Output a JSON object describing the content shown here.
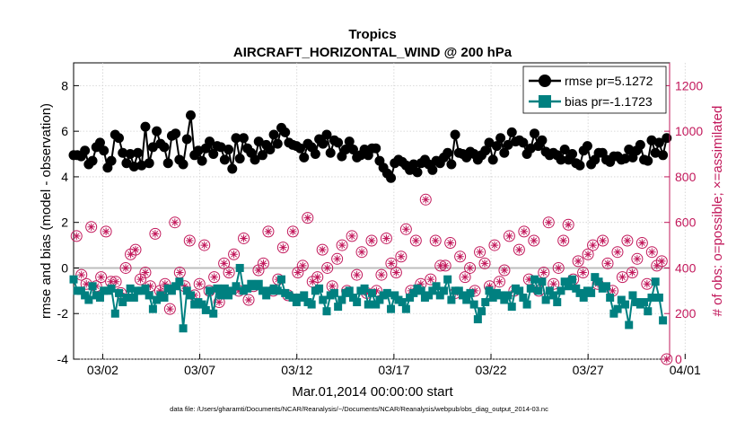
{
  "chart_data": {
    "type": "line",
    "title": "Tropics",
    "subtitle": "AIRCRAFT_HORIZONTAL_WIND @ 200 hPa",
    "xlabel": "Mar.01,2014 00:00:00 start",
    "ylabel": "rmse and bias (model - observation)",
    "y2label": "# of obs: o=possible; ×=assimilated",
    "footer": "data file: /Users/gharamti/Documents/NCAR/Reanalysis/~/Documents/NCAR/Reanalysis/webpub/obs_diag_output_2014-03.nc",
    "xlim": [
      0.5,
      31.2
    ],
    "ylim": [
      -4,
      9
    ],
    "y2lim": [
      0,
      1300
    ],
    "x_ticks": [
      2,
      7,
      12,
      17,
      22,
      27,
      32
    ],
    "x_tick_labels": [
      "03/02",
      "03/07",
      "03/12",
      "03/17",
      "03/22",
      "03/27",
      "04/01"
    ],
    "y_ticks": [
      -4,
      -2,
      0,
      2,
      4,
      6,
      8
    ],
    "y_tick_labels": [
      "-4",
      "-2",
      "0",
      "2",
      "4",
      "6",
      "8"
    ],
    "y2_ticks": [
      0,
      200,
      400,
      600,
      800,
      1000,
      1200
    ],
    "y2_tick_labels": [
      "0",
      "200",
      "400",
      "600",
      "800",
      "1000",
      "1200"
    ],
    "zero_line": 0,
    "legend": [
      {
        "name": "rmse pr=5.1272",
        "color": "#000000"
      },
      {
        "name": "bias pr=-1.1723",
        "color": "#008080"
      }
    ],
    "series": [
      {
        "name": "rmse",
        "color": "#000000",
        "marker": "circle",
        "values": [
          4.95,
          4.95,
          4.9,
          5.15,
          4.55,
          4.7,
          5.3,
          5.5,
          5.15,
          4.4,
          4.7,
          5.85,
          5.7,
          5.05,
          4.6,
          5.0,
          4.45,
          5.05,
          4.5,
          6.2,
          4.6,
          5.3,
          6.0,
          5.45,
          5.3,
          4.6,
          5.8,
          5.9,
          4.75,
          4.55,
          5.65,
          6.7,
          4.95,
          5.15,
          4.7,
          5.25,
          5.55,
          5.0,
          5.35,
          5.3,
          4.75,
          5.2,
          4.35,
          5.7,
          4.8,
          5.7,
          5.25,
          5.05,
          4.75,
          5.55,
          4.95,
          5.4,
          5.2,
          5.85,
          5.45,
          6.15,
          5.95,
          5.5,
          5.4,
          5.35,
          5.25,
          4.85,
          5.45,
          5.3,
          5.0,
          5.65,
          5.45,
          5.85,
          5.05,
          5.6,
          5.5,
          4.9,
          5.2,
          5.55,
          5.2,
          4.85,
          4.95,
          5.2,
          4.95,
          5.25,
          5.25,
          4.7,
          4.4,
          4.15,
          3.95,
          4.6,
          4.75,
          4.65,
          4.5,
          4.3,
          4.55,
          4.2,
          4.6,
          4.75,
          4.55,
          4.3,
          4.7,
          4.6,
          4.85,
          5.05,
          4.55,
          5.85,
          5.05,
          5.0,
          4.85,
          5.1,
          5.0,
          4.75,
          4.95,
          5.15,
          5.5,
          4.75,
          5.35,
          5.7,
          5.05,
          5.4,
          5.95,
          5.55,
          5.6,
          5.5,
          5.0,
          5.25,
          5.9,
          5.35,
          5.6,
          5.1,
          4.95,
          5.05,
          4.95,
          4.75,
          5.2,
          4.75,
          5.0,
          4.6,
          4.5,
          5.15,
          5.35,
          4.55,
          4.75,
          5.05,
          5.05,
          4.75,
          4.65,
          4.9,
          4.9,
          4.75,
          4.8,
          5.2,
          4.85,
          5.15,
          5.4,
          4.75,
          4.7,
          5.6,
          5.05,
          5.5,
          4.95,
          5.7
        ],
        "x_start": 0.5,
        "x_step": 0.1946
      },
      {
        "name": "bias",
        "color": "#008080",
        "marker": "square",
        "values": [
          -0.5,
          -1.0,
          -1.0,
          -1.2,
          -1.4,
          -0.8,
          -1.2,
          -1.3,
          -1.0,
          -1.0,
          -0.9,
          -2.0,
          -1.1,
          -1.5,
          -1.3,
          -0.9,
          -1.3,
          -1.0,
          -1.0,
          -0.9,
          -1.2,
          -1.8,
          -1.4,
          -1.2,
          -1.3,
          -0.9,
          -1.0,
          -0.8,
          -0.6,
          -2.65,
          -1.0,
          -1.2,
          -1.6,
          -1.5,
          -1.6,
          -1.85,
          -1.0,
          -2.0,
          -0.9,
          -1.2,
          -0.9,
          -1.2,
          -1.0,
          -0.8,
          0.0,
          -1.0,
          -0.9,
          -0.7,
          -0.8,
          -0.7,
          -1.0,
          -1.2,
          -1.0,
          -0.9,
          -1.0,
          -0.5,
          -1.1,
          -1.2,
          -1.3,
          -1.5,
          -1.3,
          -1.2,
          -1.5,
          -1.6,
          -1.0,
          -0.9,
          -1.4,
          -1.9,
          -1.2,
          -1.1,
          -1.7,
          -1.4,
          -1.1,
          -1.0,
          -1.3,
          -1.5,
          -1.0,
          -0.9,
          -1.6,
          -1.1,
          -1.6,
          -1.4,
          -1.2,
          -1.1,
          -1.8,
          -1.2,
          -1.4,
          -1.5,
          -1.8,
          -1.3,
          -1.1,
          -0.9,
          -1.0,
          -1.3,
          -1.2,
          -1.0,
          -0.8,
          -1.2,
          -1.0,
          -0.5,
          -1.4,
          -1.0,
          -1.0,
          -1.2,
          -1.4,
          -1.1,
          -1.6,
          -2.25,
          -1.9,
          -1.5,
          -1.0,
          -1.3,
          -1.1,
          -1.2,
          -1.4,
          -1.2,
          -1.7,
          -0.9,
          -1.0,
          -1.3,
          -1.6,
          -0.9,
          -0.5,
          -1.0,
          -0.6,
          -1.4,
          -1.0,
          -1.2,
          -1.5,
          -1.0,
          -0.6,
          -0.8,
          -0.5,
          -0.9,
          -1.1,
          -1.3,
          -1.0,
          -1.1,
          -0.4,
          -0.6,
          -0.9,
          -0.8,
          -1.3,
          -2.0,
          -1.8,
          -1.4,
          -1.6,
          -2.5,
          -1.2,
          -1.5,
          -1.6,
          -1.5,
          -1.9,
          -1.3,
          -0.6,
          -1.3,
          -2.3
        ],
        "x_start": 0.5,
        "x_step": 0.1946
      }
    ],
    "obs_possible": {
      "name": "# of obs possible",
      "color": "#c2185b",
      "marker": "open-circle",
      "axis": "right",
      "values": [
        540,
        370,
        330,
        580,
        320,
        360,
        560,
        340,
        340,
        290,
        400,
        460,
        480,
        350,
        380,
        320,
        550,
        300,
        330,
        220,
        600,
        380,
        320,
        520,
        280,
        330,
        500,
        300,
        360,
        250,
        420,
        380,
        460,
        300,
        530,
        260,
        320,
        390,
        420,
        560,
        300,
        350,
        490,
        280,
        560,
        380,
        410,
        620,
        340,
        360,
        480,
        400,
        320,
        440,
        500,
        300,
        540,
        370,
        470,
        290,
        520,
        300,
        370,
        530,
        420,
        380,
        450,
        570,
        300,
        520,
        330,
        700,
        350,
        520,
        410,
        410,
        510,
        290,
        450,
        360,
        400,
        300,
        470,
        420,
        320,
        500,
        340,
        390,
        540,
        300,
        480,
        560,
        350,
        520,
        300,
        380,
        600,
        330,
        400,
        520,
        590,
        350,
        430,
        380,
        460,
        500,
        330,
        520,
        420,
        300,
        470,
        360,
        520,
        380,
        440,
        510,
        330,
        470,
        410,
        430,
        0
      ]
    }
  }
}
